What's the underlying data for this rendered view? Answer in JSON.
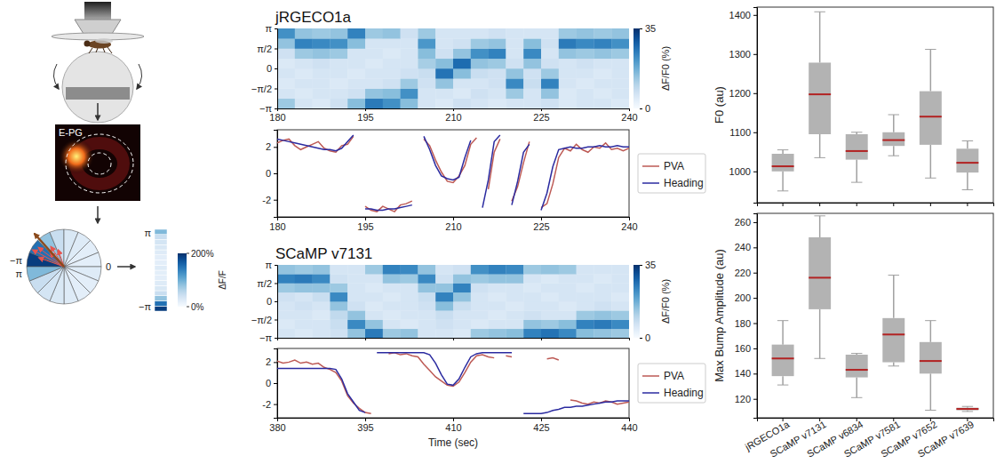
{
  "chart_data": [
    {
      "type": "diagram",
      "image_label": "E-PG",
      "sector_edges": [
        -3.1416,
        -2.7489,
        -2.3562,
        -1.9635,
        -1.5708,
        -1.1781,
        -0.7854,
        -0.3927,
        0,
        0.3927,
        0.7854,
        1.1781,
        1.5708,
        1.9635,
        2.3562,
        2.7489,
        3.1416
      ],
      "sector_values": [
        190,
        150,
        80,
        45,
        30,
        25,
        20,
        20,
        25,
        20,
        20,
        25,
        30,
        35,
        45,
        90
      ],
      "wedge_ticks": [
        {
          "value": -3.1416,
          "label": "−π"
        },
        {
          "value": 3.1416,
          "label": "π"
        },
        0
      ],
      "column_ticks": [
        {
          "value": 3.1416,
          "label": "π"
        },
        {
          "value": -3.1416,
          "label": "−π"
        }
      ],
      "colorbar": {
        "lim": [
          0,
          200
        ],
        "ticks": [
          {
            "value": 200,
            "label": "200%"
          },
          {
            "value": 0,
            "label": "0%"
          }
        ],
        "label": "ΔF/F"
      }
    },
    {
      "type": "heatmap",
      "title": "jRGECO1a",
      "x_edges": [
        180,
        183,
        186,
        189,
        192,
        195,
        198,
        201,
        204,
        207,
        210,
        213,
        216,
        219,
        222,
        225,
        228,
        231,
        234,
        237,
        240
      ],
      "y_edges": [
        -3.1416,
        -2.3562,
        -1.5708,
        -0.7854,
        0,
        0.7854,
        1.5708,
        2.3562,
        3.1416
      ],
      "xlim": [
        180,
        240
      ],
      "xticks": [
        180,
        195,
        210,
        225,
        240
      ],
      "ylim": [
        -3.1416,
        3.1416
      ],
      "yticks": [
        {
          "value": 3.1416,
          "label": "π"
        },
        {
          "value": 1.5708,
          "label": "π/2"
        },
        0,
        {
          "value": -1.5708,
          "label": "−π/2"
        },
        {
          "value": -3.1416,
          "label": "−π"
        }
      ],
      "cells": [
        [
          13,
          6,
          5,
          7,
          15,
          25,
          22,
          15,
          6,
          5,
          7,
          6,
          5,
          6,
          6,
          7,
          5,
          6,
          6,
          5
        ],
        [
          6,
          5,
          6,
          6,
          7,
          14,
          15,
          22,
          6,
          6,
          5,
          7,
          6,
          13,
          6,
          14,
          5,
          6,
          5,
          6
        ],
        [
          5,
          6,
          6,
          5,
          6,
          6,
          7,
          13,
          7,
          14,
          6,
          6,
          7,
          23,
          8,
          24,
          6,
          5,
          6,
          6
        ],
        [
          6,
          5,
          6,
          6,
          5,
          6,
          6,
          7,
          8,
          26,
          15,
          8,
          7,
          14,
          7,
          13,
          6,
          6,
          5,
          6
        ],
        [
          5,
          6,
          7,
          6,
          6,
          5,
          6,
          6,
          12,
          15,
          27,
          14,
          13,
          7,
          14,
          7,
          6,
          7,
          6,
          6
        ],
        [
          7,
          13,
          14,
          13,
          6,
          6,
          5,
          6,
          15,
          7,
          14,
          22,
          24,
          6,
          23,
          6,
          14,
          13,
          14,
          13
        ],
        [
          14,
          24,
          23,
          22,
          15,
          6,
          6,
          6,
          21,
          6,
          7,
          13,
          14,
          6,
          15,
          7,
          25,
          23,
          24,
          22
        ],
        [
          22,
          14,
          13,
          14,
          24,
          13,
          14,
          7,
          13,
          6,
          6,
          6,
          7,
          6,
          6,
          6,
          13,
          14,
          13,
          14
        ]
      ],
      "colorbar": {
        "lim": [
          0,
          35
        ],
        "ticks": [
          0,
          35
        ],
        "label": "ΔF/F0 (%)"
      }
    },
    {
      "type": "line",
      "x": [
        180,
        181,
        182,
        183,
        184,
        185,
        186,
        187,
        188,
        189,
        190,
        191,
        192,
        193,
        194,
        195,
        196,
        197,
        198,
        199,
        200,
        201,
        202,
        203,
        204,
        205,
        206,
        207,
        208,
        209,
        210,
        211,
        212,
        213,
        214,
        215,
        216,
        217,
        218,
        219,
        220,
        221,
        222,
        223,
        224,
        225,
        226,
        227,
        228,
        229,
        230,
        231,
        232,
        233,
        234,
        235,
        236,
        237,
        238,
        239,
        240
      ],
      "xlim": [
        180,
        240
      ],
      "xticks": [
        180,
        195,
        210,
        225,
        240
      ],
      "ylim": [
        -3.3,
        3.3
      ],
      "yticks": [
        -2,
        0,
        2
      ],
      "legend": "right",
      "series": [
        {
          "name": "PVA",
          "color": "#bd5a55",
          "values": [
            2.3,
            2.5,
            2.6,
            2.1,
            1.8,
            2.0,
            2.2,
            2.4,
            1.9,
            1.7,
            1.6,
            2.1,
            2.2,
            2.8,
            null,
            -2.5,
            -2.8,
            -2.9,
            -2.5,
            -2.7,
            -2.9,
            -2.4,
            -2.3,
            -2.1,
            null,
            2.6,
            2.1,
            1.0,
            0.1,
            -0.6,
            -0.7,
            -0.2,
            0.6,
            2.2,
            2.7,
            null,
            -1.2,
            1.6,
            2.6,
            null,
            -2.1,
            -1.0,
            0.8,
            2.4,
            null,
            -2.6,
            -2.3,
            -0.8,
            1.2,
            1.9,
            1.7,
            2.2,
            1.8,
            1.6,
            2.0,
            1.9,
            2.3,
            1.8,
            1.9,
            1.7,
            1.9
          ]
        },
        {
          "name": "Heading",
          "color": "#2b2ba0",
          "values": [
            2.6,
            2.5,
            2.4,
            2.3,
            2.2,
            2.1,
            2.0,
            1.9,
            1.8,
            1.8,
            1.7,
            1.9,
            2.4,
            2.9,
            null,
            -2.7,
            -2.7,
            -2.8,
            -2.8,
            -2.7,
            -2.7,
            -2.6,
            -2.5,
            -2.4,
            null,
            2.8,
            1.8,
            0.6,
            -0.2,
            -0.4,
            -0.5,
            -0.3,
            1.2,
            2.5,
            null,
            -2.6,
            -0.5,
            2.4,
            2.9,
            null,
            -2.4,
            -0.6,
            1.6,
            2.2,
            null,
            -2.8,
            -1.5,
            0.5,
            1.8,
            1.9,
            2.0,
            1.9,
            1.9,
            2.0,
            2.0,
            2.1,
            2.0,
            2.0,
            2.1,
            2.0,
            2.0
          ]
        }
      ]
    },
    {
      "type": "heatmap",
      "title": "SCaMP v7131",
      "x_edges": [
        380,
        383,
        386,
        389,
        392,
        395,
        398,
        401,
        404,
        407,
        410,
        413,
        416,
        419,
        422,
        425,
        428,
        431,
        434,
        437,
        440
      ],
      "y_edges": [
        -3.1416,
        -2.3562,
        -1.5708,
        -0.7854,
        0,
        0.7854,
        1.5708,
        2.3562,
        3.1416
      ],
      "xlim": [
        380,
        440
      ],
      "xticks": [
        380,
        395,
        410,
        425,
        440
      ],
      "ylim": [
        -3.1416,
        3.1416
      ],
      "yticks": [
        {
          "value": 3.1416,
          "label": "π"
        },
        {
          "value": 1.5708,
          "label": "π/2"
        },
        0,
        {
          "value": -1.5708,
          "label": "−π/2"
        },
        {
          "value": -3.1416,
          "label": "−π"
        }
      ],
      "tick_labels": "y",
      "cells": [
        [
          6,
          5,
          6,
          7,
          14,
          25,
          13,
          14,
          6,
          6,
          5,
          13,
          14,
          15,
          24,
          26,
          23,
          15,
          14,
          13
        ],
        [
          5,
          6,
          6,
          8,
          23,
          14,
          6,
          5,
          6,
          7,
          6,
          5,
          6,
          6,
          14,
          13,
          15,
          24,
          25,
          23
        ],
        [
          6,
          6,
          5,
          9,
          14,
          6,
          5,
          6,
          6,
          8,
          6,
          6,
          5,
          6,
          7,
          6,
          6,
          13,
          14,
          13
        ],
        [
          6,
          7,
          6,
          14,
          7,
          5,
          6,
          6,
          7,
          15,
          8,
          6,
          6,
          5,
          6,
          6,
          5,
          6,
          7,
          6
        ],
        [
          7,
          6,
          8,
          23,
          6,
          6,
          5,
          6,
          8,
          24,
          14,
          6,
          5,
          6,
          6,
          5,
          6,
          6,
          6,
          5
        ],
        [
          13,
          14,
          14,
          13,
          6,
          5,
          6,
          6,
          14,
          14,
          24,
          7,
          6,
          6,
          5,
          6,
          6,
          5,
          6,
          6
        ],
        [
          24,
          25,
          23,
          7,
          6,
          6,
          14,
          13,
          23,
          7,
          14,
          13,
          14,
          14,
          6,
          5,
          6,
          6,
          5,
          6
        ],
        [
          14,
          13,
          14,
          6,
          6,
          13,
          24,
          23,
          14,
          6,
          7,
          22,
          24,
          23,
          13,
          14,
          13,
          6,
          6,
          6
        ]
      ],
      "colorbar": {
        "lim": [
          0,
          35
        ],
        "ticks": [
          0,
          35
        ],
        "label": "ΔF/F0 (%)"
      }
    },
    {
      "type": "line",
      "xlabel": "Time (sec)",
      "x": [
        380,
        381,
        382,
        383,
        384,
        385,
        386,
        387,
        388,
        389,
        390,
        391,
        392,
        393,
        394,
        395,
        396,
        397,
        398,
        399,
        400,
        401,
        402,
        403,
        404,
        405,
        406,
        407,
        408,
        409,
        410,
        411,
        412,
        413,
        414,
        415,
        416,
        417,
        418,
        419,
        420,
        421,
        422,
        423,
        424,
        425,
        426,
        427,
        428,
        429,
        430,
        431,
        432,
        433,
        434,
        435,
        436,
        437,
        438,
        439,
        440
      ],
      "xlim": [
        380,
        440
      ],
      "xticks": [
        380,
        395,
        410,
        425,
        440
      ],
      "ylim": [
        -3.3,
        3.3
      ],
      "yticks": [
        -2,
        0,
        2
      ],
      "legend": "right",
      "series": [
        {
          "name": "PVA",
          "color": "#bd5a55",
          "values": [
            2.1,
            1.9,
            2.0,
            2.2,
            1.9,
            2.0,
            1.8,
            1.9,
            1.5,
            1.3,
            1.0,
            0.2,
            -1.2,
            -1.9,
            -2.4,
            -2.8,
            -2.9,
            null,
            null,
            2.8,
            2.9,
            2.7,
            2.8,
            2.6,
            2.5,
            1.8,
            1.2,
            0.6,
            0.2,
            -0.2,
            -0.3,
            0.1,
            1.0,
            2.0,
            2.6,
            2.7,
            2.5,
            2.4,
            null,
            2.6,
            2.5,
            null,
            null,
            null,
            null,
            null,
            2.3,
            2.4,
            2.2,
            null,
            -1.6,
            -1.7,
            -1.9,
            -2.0,
            -1.8,
            -1.9,
            -1.7,
            -1.8,
            -2.0,
            -1.9,
            -1.8
          ]
        },
        {
          "name": "Heading",
          "color": "#2b2ba0",
          "values": [
            1.4,
            1.4,
            1.4,
            1.4,
            1.4,
            1.4,
            1.4,
            1.4,
            1.4,
            1.4,
            1.3,
            0.4,
            -1.0,
            -1.8,
            -2.6,
            -2.8,
            null,
            2.9,
            2.9,
            2.9,
            2.9,
            2.9,
            2.9,
            2.9,
            2.9,
            2.9,
            2.7,
            1.9,
            0.8,
            -0.1,
            -0.2,
            0.4,
            1.5,
            2.5,
            2.8,
            2.9,
            2.9,
            2.9,
            2.9,
            2.9,
            2.9,
            null,
            -2.9,
            -2.9,
            -2.9,
            -2.9,
            -2.8,
            -2.6,
            -2.5,
            -2.3,
            -2.3,
            -2.2,
            -2.2,
            -2.1,
            -2.0,
            -1.9,
            -1.8,
            -1.8,
            -1.7,
            -1.7,
            -1.7
          ]
        }
      ]
    },
    {
      "type": "box",
      "ylabel": "F0 (au)",
      "categories": [
        "jRGECO1a",
        "SCaMP v7131",
        "SCaMP v6834",
        "SCaMP v7581",
        "SCaMP v7652",
        "SCaMP v7639"
      ],
      "min": [
        950,
        1035,
        972,
        1040,
        983,
        953
      ],
      "q1": [
        1000,
        1095,
        1030,
        1065,
        1068,
        997
      ],
      "median": [
        1013,
        1197,
        1052,
        1080,
        1140,
        1022
      ],
      "q3": [
        1045,
        1278,
        1095,
        1100,
        1205,
        1058
      ],
      "max": [
        1055,
        1408,
        1100,
        1145,
        1312,
        1078
      ],
      "ylim": [
        920,
        1420
      ],
      "yticks": [
        1000,
        1100,
        1200,
        1300,
        1400
      ],
      "color": "#b3b3b3",
      "tick_labels": "y"
    },
    {
      "type": "box",
      "ylabel": "Max Bump Amplitude (au)",
      "categories": [
        "jRGECO1a",
        "SCaMP v7131",
        "SCaMP v6834",
        "SCaMP v7581",
        "SCaMP v7652",
        "SCaMP v7639"
      ],
      "min": [
        131,
        152,
        121,
        146,
        111,
        110
      ],
      "q1": [
        138,
        191,
        137,
        149,
        140,
        111
      ],
      "median": [
        152,
        216,
        143,
        171,
        150,
        112
      ],
      "q3": [
        163,
        248,
        155,
        184,
        165,
        113
      ],
      "max": [
        182,
        265,
        156,
        218,
        182,
        114
      ],
      "ylim": [
        105,
        267
      ],
      "yticks": [
        120,
        140,
        160,
        180,
        200,
        220,
        240,
        260
      ],
      "color": "#b3b3b3"
    }
  ]
}
